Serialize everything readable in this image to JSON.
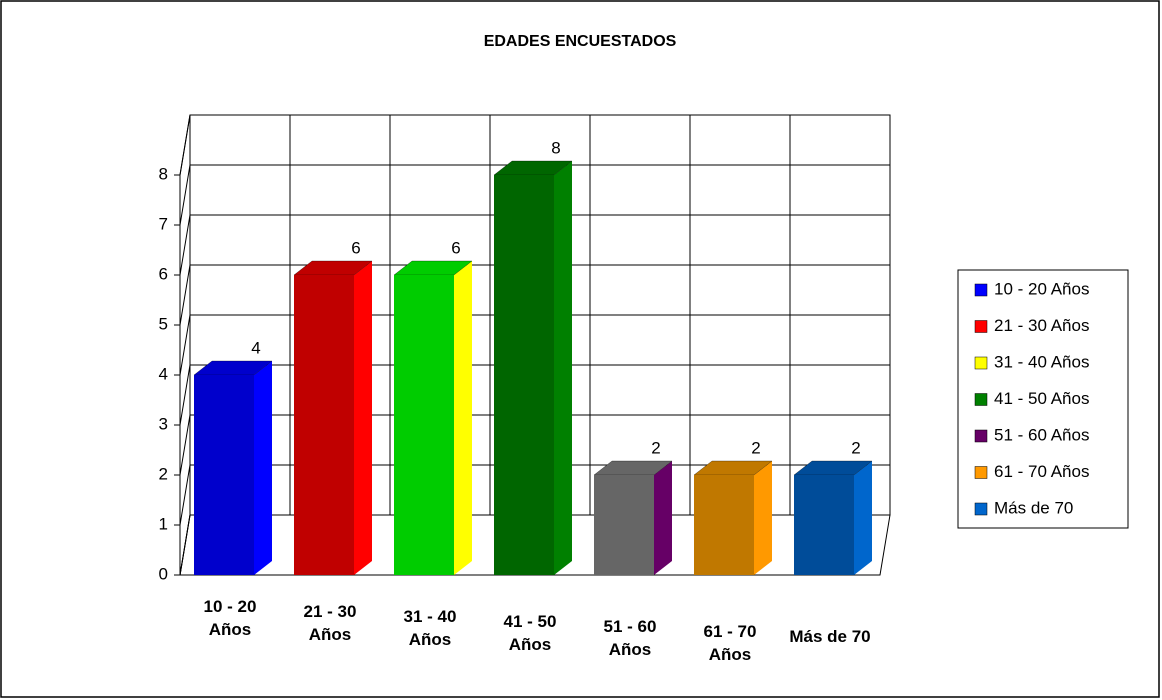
{
  "chart_data": {
    "type": "bar",
    "title": "EDADES ENCUESTADOS",
    "categories": [
      "10 - 20 Años",
      "21 - 30 Años",
      "31 - 40 Años",
      "41 - 50 Años",
      "51 - 60 Años",
      "61 - 70 Años",
      "Más de 70"
    ],
    "values": [
      4,
      6,
      6,
      8,
      2,
      2,
      2
    ],
    "colors": [
      "#0000cc",
      "#c00000",
      "#00cc00",
      "#006600",
      "#666666",
      "#c07800",
      "#004c99"
    ],
    "legend": [
      {
        "name": "10 - 20 Años",
        "color": "#0000ff"
      },
      {
        "name": "21 - 30 Años",
        "color": "#ff0000"
      },
      {
        "name": "31 - 40 Años",
        "color": "#ffff00"
      },
      {
        "name": "41 - 50 Años",
        "color": "#008000"
      },
      {
        "name": "51 - 60 Años",
        "color": "#660066"
      },
      {
        "name": "61 - 70 Años",
        "color": "#ff9900"
      },
      {
        "name": "Más de 70",
        "color": "#0066cc"
      }
    ],
    "ylim": [
      0,
      8
    ],
    "yticks": [
      0,
      1,
      2,
      3,
      4,
      5,
      6,
      7,
      8
    ],
    "grid": true
  }
}
